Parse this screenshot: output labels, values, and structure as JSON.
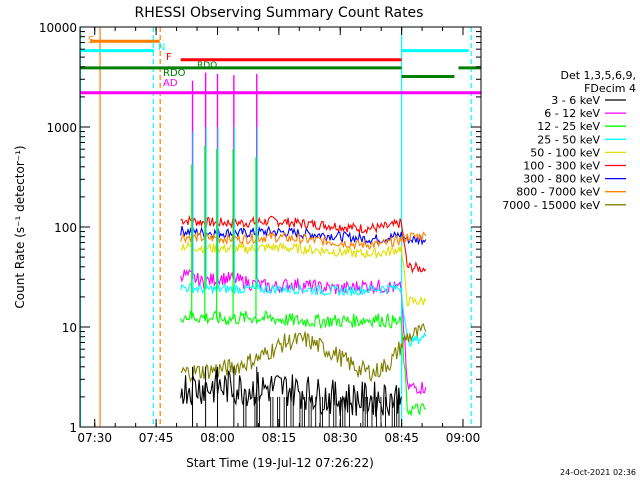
{
  "page": {
    "timestamp": "24-Oct-2021 02:36"
  },
  "chart_data": {
    "type": "line",
    "title": "RHESSI Observing Summary Count Rates",
    "xlabel": "Start Time (19-Jul-12 07:26:22)",
    "ylabel": "Count Rate (s⁻¹ detector⁻¹)",
    "x_unit": "minutes after 07:26:22",
    "xlim": [
      0,
      98
    ],
    "ylim": [
      1,
      10000
    ],
    "yscale": "log",
    "xticks": [
      {
        "x": 3.6,
        "label": "07:30"
      },
      {
        "x": 18.6,
        "label": "07:45"
      },
      {
        "x": 33.6,
        "label": "08:00"
      },
      {
        "x": 48.6,
        "label": "08:15"
      },
      {
        "x": 63.6,
        "label": "08:30"
      },
      {
        "x": 78.6,
        "label": "08:45"
      },
      {
        "x": 93.6,
        "label": "09:00"
      }
    ],
    "yticks": [
      {
        "y": 1,
        "label": "1"
      },
      {
        "y": 10,
        "label": "10"
      },
      {
        "y": 100,
        "label": "100"
      },
      {
        "y": 1000,
        "label": "1000"
      },
      {
        "y": 10000,
        "label": "10000"
      }
    ],
    "legend": {
      "position": "right",
      "header": [
        "Det 1,3,5,6,9,",
        "FDecim 4"
      ],
      "entries": [
        {
          "label": "3 - 6 keV",
          "color": "#000000"
        },
        {
          "label": "6 - 12 keV",
          "color": "#ff00ff"
        },
        {
          "label": "12 - 25 keV",
          "color": "#00ff00"
        },
        {
          "label": "25 - 50 keV",
          "color": "#00ffff"
        },
        {
          "label": "50 - 100 keV",
          "color": "#e0e000"
        },
        {
          "label": "100 - 300 keV",
          "color": "#ff0000"
        },
        {
          "label": "300 - 800 keV",
          "color": "#0000ff"
        },
        {
          "label": "800 - 7000 keV",
          "color": "#ff8000"
        },
        {
          "label": "7000 - 15000 keV",
          "color": "#808000"
        }
      ]
    },
    "series": [
      {
        "name": "100 - 300 keV",
        "color": "#ff0000",
        "x": [
          24.6,
          30,
          40,
          47,
          55,
          62,
          68,
          73,
          76,
          78.5,
          80,
          84.5
        ],
        "y": [
          118,
          112,
          110,
          115,
          108,
          103,
          97,
          98,
          102,
          110,
          40,
          38
        ]
      },
      {
        "name": "300 - 800 keV",
        "color": "#0000ff",
        "x": [
          24.6,
          30,
          40,
          47,
          55,
          62,
          68,
          73,
          76,
          78.5,
          80,
          84.5
        ],
        "y": [
          92,
          88,
          87,
          90,
          86,
          82,
          77,
          76,
          79,
          84,
          75,
          75
        ]
      },
      {
        "name": "800 - 7000 keV",
        "color": "#ff8000",
        "x": [
          24.6,
          30,
          40,
          47,
          55,
          62,
          68,
          73,
          76,
          78.5,
          80,
          84.5
        ],
        "y": [
          80,
          78,
          76,
          80,
          75,
          71,
          67,
          67,
          70,
          75,
          80,
          82
        ]
      },
      {
        "name": "50 - 100 keV",
        "color": "#e0e000",
        "x": [
          24.6,
          30,
          40,
          47,
          55,
          62,
          68,
          73,
          76,
          78.5,
          80,
          84.5
        ],
        "y": [
          65,
          62,
          60,
          63,
          60,
          57,
          54,
          55,
          57,
          62,
          18,
          18
        ]
      },
      {
        "name": "6 - 12 keV",
        "color": "#ff00ff",
        "x": [
          24.6,
          27,
          30,
          34,
          38,
          42,
          47,
          52,
          58,
          64,
          70,
          76,
          78.5,
          80,
          84.5
        ],
        "y": [
          34,
          32,
          28,
          31,
          30,
          27,
          25,
          27,
          25,
          24,
          26,
          25,
          24,
          2.5,
          2.5
        ]
      },
      {
        "name": "25 - 50 keV",
        "color": "#00ffff",
        "x": [
          24.6,
          30,
          36,
          42,
          48,
          54,
          60,
          66,
          72,
          78.5,
          80,
          84.5
        ],
        "y": [
          25,
          24,
          24,
          24,
          24,
          24,
          23,
          23,
          24,
          25,
          7,
          8
        ]
      },
      {
        "name": "12 - 25 keV",
        "color": "#00ff00",
        "x": [
          24.6,
          30,
          36,
          42,
          48,
          54,
          60,
          66,
          72,
          78.5,
          80,
          84.5
        ],
        "y": [
          13,
          12.5,
          12,
          12.5,
          12,
          11.5,
          11.5,
          11.5,
          12,
          11,
          1.5,
          1.5
        ]
      },
      {
        "name": "7000 - 15000 keV",
        "color": "#808000",
        "x": [
          24.6,
          30,
          38,
          44,
          50,
          55,
          62,
          68,
          72,
          76,
          78.5,
          80,
          84.5
        ],
        "y": [
          3.5,
          3.6,
          4,
          5,
          7,
          7.5,
          5.5,
          3.8,
          3.5,
          4.5,
          6.5,
          8,
          9
        ]
      },
      {
        "name": "3 - 6 keV",
        "color": "#000000",
        "x": [
          24.6,
          30,
          36,
          42,
          48,
          54,
          60,
          66,
          72,
          78.5
        ],
        "y": [
          2.5,
          2.5,
          2.5,
          2.4,
          2.5,
          2.3,
          2.0,
          1.9,
          1.9,
          2.0
        ]
      }
    ],
    "spikes": [
      {
        "x": 27.5,
        "magenta": 2900,
        "green": 420,
        "cyan": 900
      },
      {
        "x": 30.7,
        "magenta": 3500,
        "green": 650,
        "cyan": 1000
      },
      {
        "x": 33.6,
        "magenta": 3400,
        "green": 600,
        "cyan": 1000
      },
      {
        "x": 37.6,
        "magenta": 3300,
        "green": 600,
        "cyan": 1000
      },
      {
        "x": 43.2,
        "magenta": 3400,
        "green": 500,
        "cyan": 1000
      }
    ],
    "state_bars": [
      {
        "label": "S",
        "color": "#ff8000",
        "x0": 2.5,
        "x1": 19.5,
        "y": 7200
      },
      {
        "label": "N",
        "color": "#00ffff",
        "x0": 0,
        "x1": 18.1,
        "y": 5800
      },
      {
        "label": "N",
        "color": "#00ffff",
        "x0": 78.6,
        "x1": 95,
        "y": 5800
      },
      {
        "label": "F",
        "color": "#ff0000",
        "x0": 24.6,
        "x1": 78.6,
        "y": 4700
      },
      {
        "label": "RDO",
        "color": "#008000",
        "x0": 0,
        "x1": 78.6,
        "y": 3900
      },
      {
        "label": "RDO",
        "color": "#008000",
        "x0": 78.6,
        "x1": 91.5,
        "y": 3200
      },
      {
        "label": "RDO",
        "color": "#008000",
        "x0": 92.5,
        "x1": 98,
        "y": 3900
      },
      {
        "label": "AD",
        "color": "#ff00ff",
        "x0": 0,
        "x1": 98,
        "y": 2200
      }
    ],
    "vlines": [
      {
        "x": 0.1,
        "color": "#00ffff",
        "dash": false
      },
      {
        "x": 4.9,
        "color": "#ff8000",
        "dash": false
      },
      {
        "x": 17.9,
        "color": "#00ffff",
        "dash": true
      },
      {
        "x": 19.6,
        "color": "#ff8000",
        "dash": true
      },
      {
        "x": 78.6,
        "color": "#00ffff",
        "dash": false
      },
      {
        "x": 95.6,
        "color": "#00ffff",
        "dash": true
      }
    ]
  }
}
